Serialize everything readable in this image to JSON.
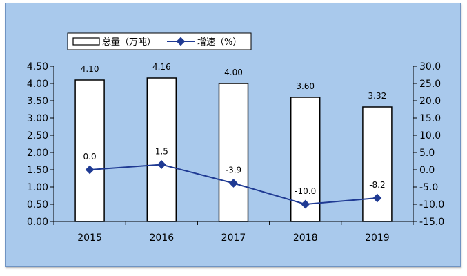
{
  "chart_data": {
    "type": "bar+line",
    "categories": [
      "2015",
      "2016",
      "2017",
      "2018",
      "2019"
    ],
    "series": [
      {
        "name": "总量（万吨）",
        "type": "bar",
        "axis": "left",
        "values": [
          4.1,
          4.16,
          4.0,
          3.6,
          3.32
        ],
        "labels": [
          "4.10",
          "4.16",
          "4.00",
          "3.60",
          "3.32"
        ]
      },
      {
        "name": "增速（%）",
        "type": "line",
        "axis": "right",
        "values": [
          0.0,
          1.5,
          -3.9,
          -10.0,
          -8.2
        ],
        "labels": [
          "0.0",
          "1.5",
          "-3.9",
          "-10.0",
          "-8.2"
        ]
      }
    ],
    "y_left": {
      "ylim": [
        0,
        4.5
      ],
      "ticks": [
        "0.00",
        "0.50",
        "1.00",
        "1.50",
        "2.00",
        "2.50",
        "3.00",
        "3.50",
        "4.00",
        "4.50"
      ]
    },
    "y_right": {
      "ylim": [
        -15,
        30
      ],
      "ticks": [
        "-15.0",
        "-10.0",
        "-5.0",
        "0.0",
        "5.0",
        "10.0",
        "15.0",
        "20.0",
        "25.0",
        "30.0"
      ]
    },
    "grid": false,
    "legend": "top-left",
    "colors": {
      "background": "#a9c9ec",
      "bar_fill": "#ffffff",
      "bar_stroke": "#000000",
      "line": "#1f3a93",
      "marker": "#1f3a93"
    }
  }
}
